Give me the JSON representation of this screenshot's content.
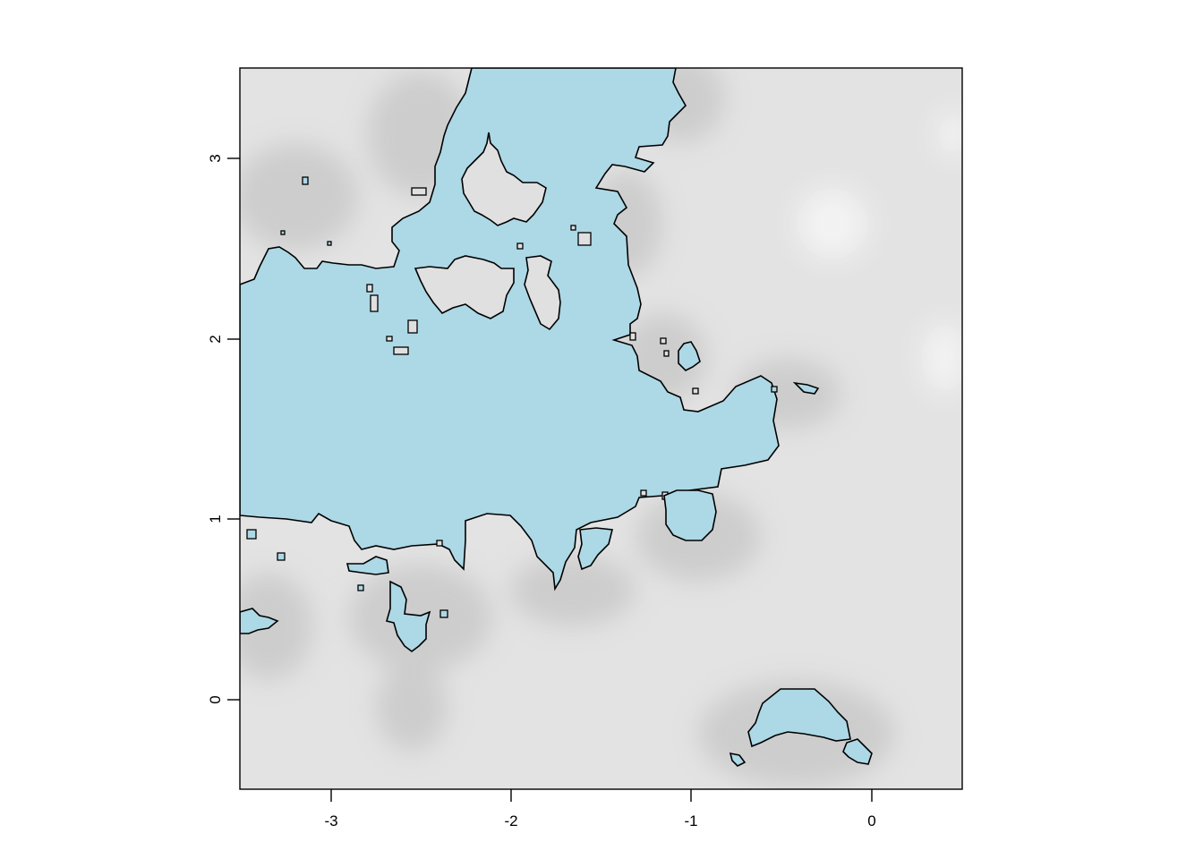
{
  "map": {
    "x_ticks": [
      "-3",
      "-2",
      "-1",
      "0"
    ],
    "y_ticks": [
      "0",
      "1",
      "2",
      "3"
    ],
    "x_range": [
      -3.5,
      0.5
    ],
    "y_range": [
      -0.5,
      3.5
    ],
    "colors": {
      "water": "#add8e6",
      "land": "#e3e3e3",
      "land_shadow": "#c4c4c4",
      "outline": "#000000"
    }
  }
}
